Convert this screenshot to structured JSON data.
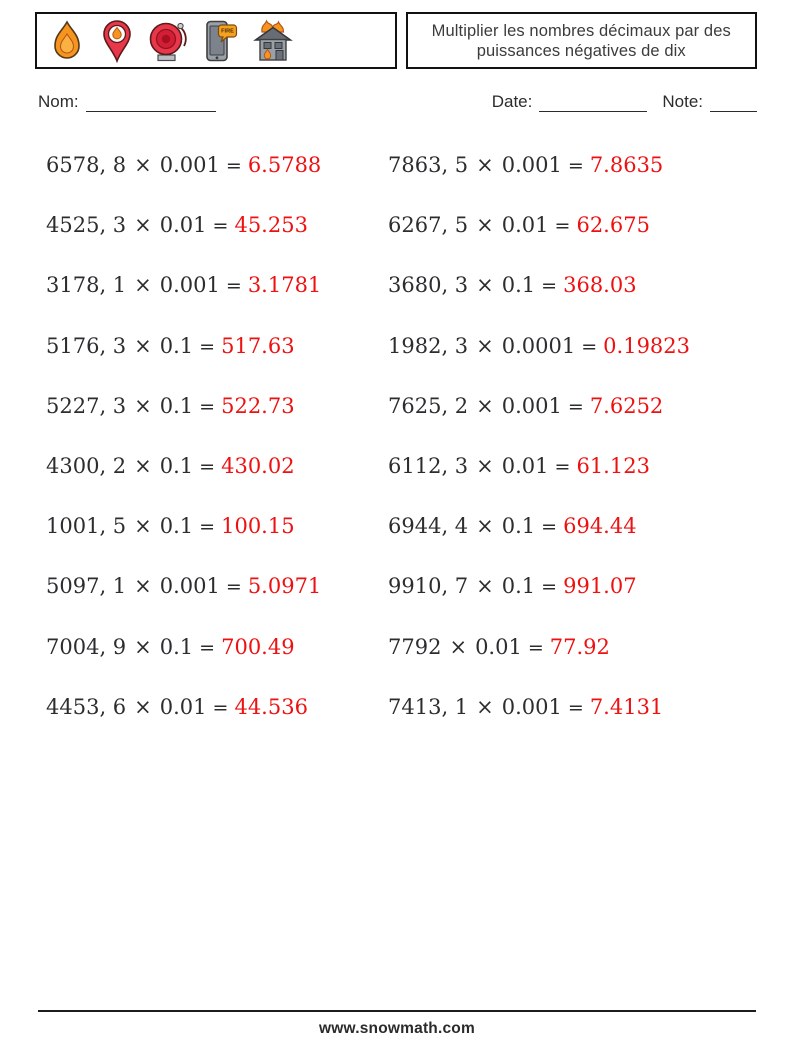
{
  "header": {
    "icons": [
      "flame-icon",
      "fire-location-pin-icon",
      "fire-alarm-bell-icon",
      "fire-alert-phone-icon",
      "burning-house-icon"
    ],
    "fire_bubble_text": "FIRE",
    "title_line1": "Multiplier les nombres décimaux par des",
    "title_line2": "puissances négatives de dix"
  },
  "fields": {
    "name_label": "Nom:",
    "date_label": "Date:",
    "note_label": "Note:"
  },
  "symbols": {
    "times": "×",
    "equals": "="
  },
  "colors": {
    "answer_red": "#ee1111",
    "text_dark": "#2d2d30"
  },
  "problems": {
    "left": [
      {
        "operand": "6578, 8",
        "multiplier": "0.001",
        "answer": "6.5788"
      },
      {
        "operand": "4525, 3",
        "multiplier": "0.01",
        "answer": "45.253"
      },
      {
        "operand": "3178, 1",
        "multiplier": "0.001",
        "answer": "3.1781"
      },
      {
        "operand": "5176, 3",
        "multiplier": "0.1",
        "answer": "517.63"
      },
      {
        "operand": "5227, 3",
        "multiplier": "0.1",
        "answer": "522.73"
      },
      {
        "operand": "4300, 2",
        "multiplier": "0.1",
        "answer": "430.02"
      },
      {
        "operand": "1001, 5",
        "multiplier": "0.1",
        "answer": "100.15"
      },
      {
        "operand": "5097, 1",
        "multiplier": "0.001",
        "answer": "5.0971"
      },
      {
        "operand": "7004, 9",
        "multiplier": "0.1",
        "answer": "700.49"
      },
      {
        "operand": "4453, 6",
        "multiplier": "0.01",
        "answer": "44.536"
      }
    ],
    "right": [
      {
        "operand": "7863, 5",
        "multiplier": "0.001",
        "answer": "7.8635"
      },
      {
        "operand": "6267, 5",
        "multiplier": "0.01",
        "answer": "62.675"
      },
      {
        "operand": "3680, 3",
        "multiplier": "0.1",
        "answer": "368.03"
      },
      {
        "operand": "1982, 3",
        "multiplier": "0.0001",
        "answer": "0.19823"
      },
      {
        "operand": "7625, 2",
        "multiplier": "0.001",
        "answer": "7.6252"
      },
      {
        "operand": "6112, 3",
        "multiplier": "0.01",
        "answer": "61.123"
      },
      {
        "operand": "6944, 4",
        "multiplier": "0.1",
        "answer": "694.44"
      },
      {
        "operand": "9910, 7",
        "multiplier": "0.1",
        "answer": "991.07"
      },
      {
        "operand": "7792",
        "multiplier": "0.01",
        "answer": "77.92"
      },
      {
        "operand": "7413, 1",
        "multiplier": "0.001",
        "answer": "7.4131"
      }
    ]
  },
  "footer": {
    "site": "www.snowmath.com"
  }
}
